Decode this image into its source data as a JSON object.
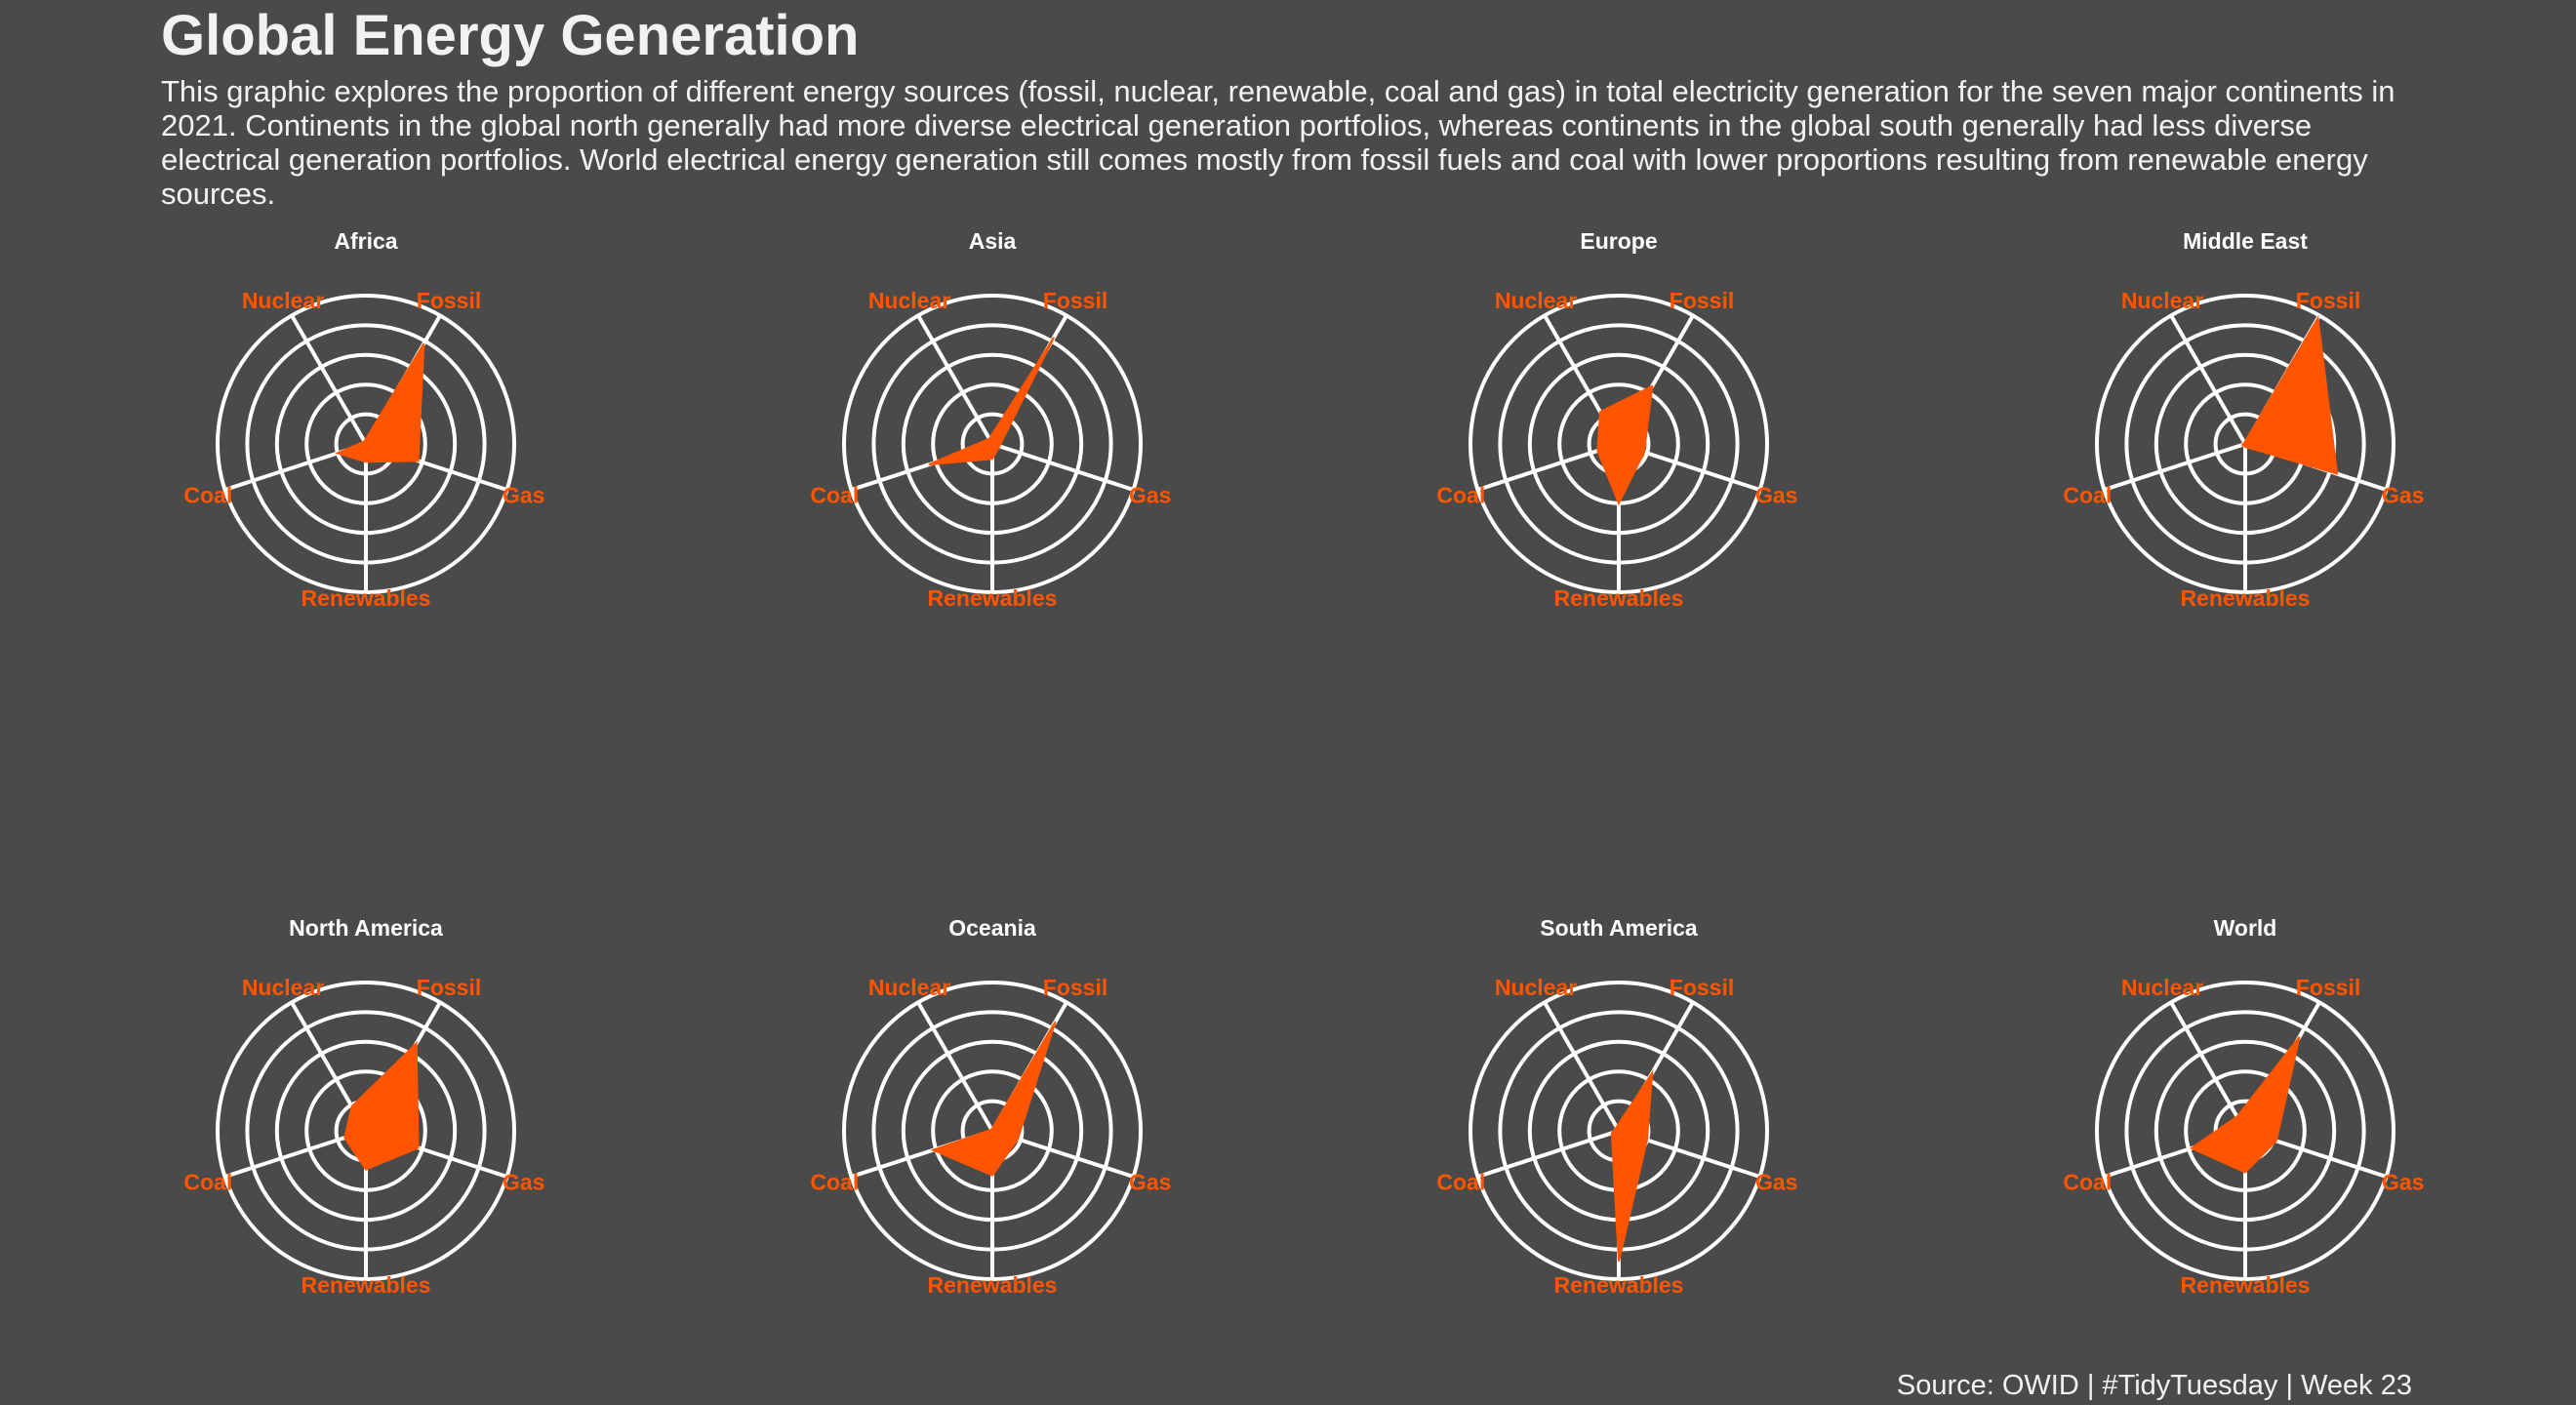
{
  "title": "Global Energy Generation",
  "subtitle": "This graphic explores the proportion of different energy sources (fossil, nuclear, renewable, coal and gas) in total electricity generation for the seven major continents in 2021. Continents in the global north generally had more diverse electrical generation portfolios, whereas continents in the global south generally had less diverse electrical generation portfolios. World electrical energy generation still comes mostly from fossil fuels and coal with lower proportions resulting from renewable energy sources.",
  "caption": "Source: OWID | #TidyTuesday | Week 23",
  "colors": {
    "background": "#4a4a4a",
    "fill": "#ff5500",
    "grid": "#ffffff",
    "text": "#ffffff"
  },
  "chart_data": [
    {
      "type": "radar",
      "title": "Africa",
      "axes": [
        "Fossil",
        "Gas",
        "Renewables",
        "Coal",
        "Nuclear"
      ],
      "values": [
        0.78,
        0.37,
        0.12,
        0.2,
        0.02
      ],
      "range": [
        0,
        1
      ],
      "rings": 5
    },
    {
      "type": "radar",
      "title": "Asia",
      "axes": [
        "Fossil",
        "Gas",
        "Renewables",
        "Coal",
        "Nuclear"
      ],
      "values": [
        0.83,
        0.05,
        0.1,
        0.45,
        0.04
      ],
      "range": [
        0,
        1
      ],
      "rings": 5
    },
    {
      "type": "radar",
      "title": "Europe",
      "axes": [
        "Fossil",
        "Gas",
        "Renewables",
        "Coal",
        "Nuclear"
      ],
      "values": [
        0.45,
        0.18,
        0.4,
        0.15,
        0.25
      ],
      "range": [
        0,
        1
      ],
      "rings": 5
    },
    {
      "type": "radar",
      "title": "Middle East",
      "axes": [
        "Fossil",
        "Gas",
        "Renewables",
        "Coal",
        "Nuclear"
      ],
      "values": [
        0.98,
        0.65,
        0.02,
        0.02,
        0.01
      ],
      "range": [
        0,
        1
      ],
      "rings": 5
    },
    {
      "type": "radar",
      "title": "North America",
      "axes": [
        "Fossil",
        "Gas",
        "Renewables",
        "Coal",
        "Nuclear"
      ],
      "values": [
        0.68,
        0.37,
        0.26,
        0.15,
        0.19
      ],
      "range": [
        0,
        1
      ],
      "rings": 5
    },
    {
      "type": "radar",
      "title": "Oceania",
      "axes": [
        "Fossil",
        "Gas",
        "Renewables",
        "Coal",
        "Nuclear"
      ],
      "values": [
        0.85,
        0.18,
        0.3,
        0.42,
        0.01
      ],
      "range": [
        0,
        1
      ],
      "rings": 5
    },
    {
      "type": "radar",
      "title": "South America",
      "axes": [
        "Fossil",
        "Gas",
        "Renewables",
        "Coal",
        "Nuclear"
      ],
      "values": [
        0.45,
        0.2,
        0.88,
        0.05,
        0.03
      ],
      "range": [
        0,
        1
      ],
      "rings": 5
    },
    {
      "type": "radar",
      "title": "World",
      "axes": [
        "Fossil",
        "Gas",
        "Renewables",
        "Coal",
        "Nuclear"
      ],
      "values": [
        0.73,
        0.22,
        0.28,
        0.38,
        0.11
      ],
      "range": [
        0,
        1
      ],
      "rings": 5
    }
  ]
}
